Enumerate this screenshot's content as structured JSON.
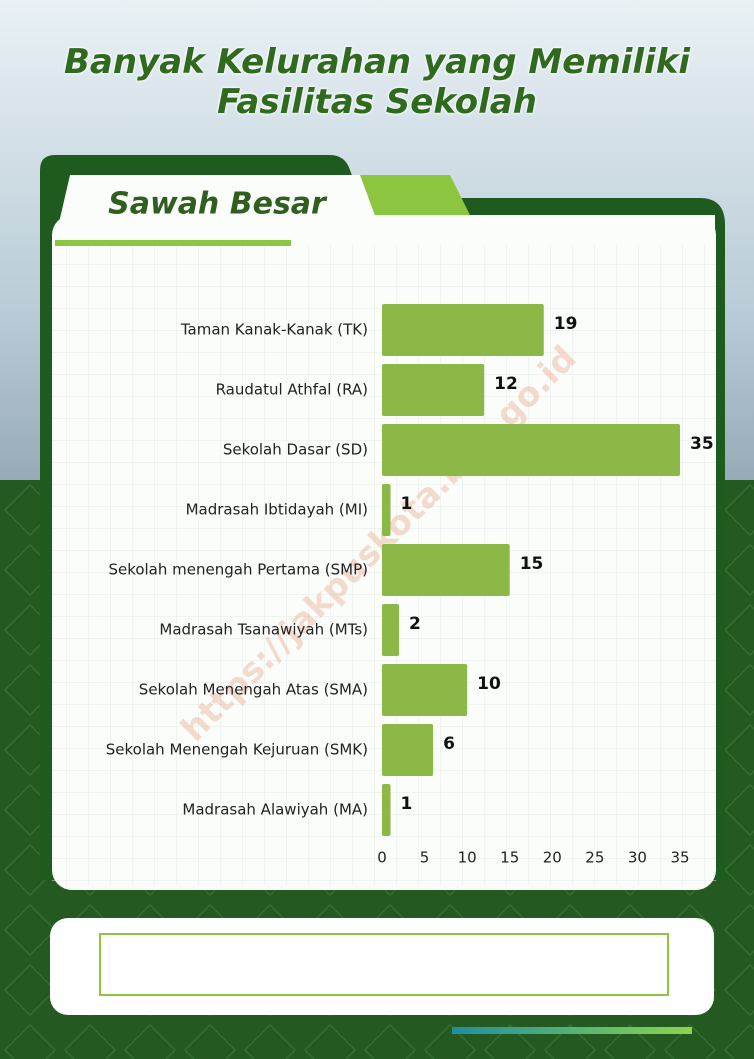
{
  "chart_data": {
    "type": "bar",
    "orientation": "horizontal",
    "title": "Banyak Kelurahan yang Memiliki Fasilitas Sekolah",
    "subtitle": "Sawah Besar",
    "watermark": "https://jakpuskota.bps.go.id",
    "categories": [
      "Taman Kanak-Kanak (TK)",
      "Raudatul Athfal (RA)",
      "Sekolah Dasar (SD)",
      "Madrasah Ibtidayah (MI)",
      "Sekolah menengah Pertama (SMP)",
      "Madrasah Tsanawiyah (MTs)",
      "Sekolah Menengah Atas (SMA)",
      "Sekolah Menengah Kejuruan (SMK)",
      "Madrasah Alawiyah (MA)"
    ],
    "values": [
      19,
      12,
      35,
      1,
      15,
      2,
      10,
      6,
      1
    ],
    "color": "#8cb847",
    "xlim": [
      0,
      35
    ],
    "xticks": [
      0,
      5,
      10,
      15,
      20,
      25,
      30,
      35
    ],
    "grid": false
  }
}
